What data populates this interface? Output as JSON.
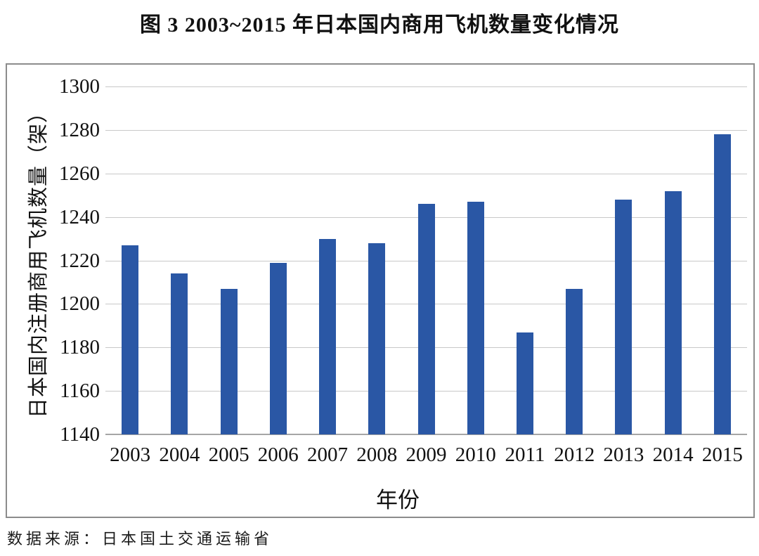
{
  "title": "图 3  2003~2015 年日本国内商用飞机数量变化情况",
  "source": "数据来源：日本国土交通运输省",
  "chart_data": {
    "type": "bar",
    "title": "图 3 2003~2015 年日本国内商用飞机数量变化情况",
    "categories": [
      "2003",
      "2004",
      "2005",
      "2006",
      "2007",
      "2008",
      "2009",
      "2010",
      "2011",
      "2012",
      "2013",
      "2014",
      "2015"
    ],
    "values": [
      1227,
      1214,
      1207,
      1219,
      1230,
      1228,
      1246,
      1247,
      1187,
      1207,
      1248,
      1252,
      1278
    ],
    "xlabel": "年份",
    "ylabel": "日本国内注册商用飞机数量（架）",
    "ylim": [
      1140,
      1300
    ],
    "yticks": [
      1140,
      1160,
      1180,
      1200,
      1220,
      1240,
      1260,
      1280,
      1300
    ],
    "grid": true,
    "legend": "none",
    "bar_color": "#2a57a5",
    "gridline_color": "#c8c8c8",
    "axis_color": "#a6a6a6",
    "source": "数据来源：日本国土交通运输省"
  }
}
